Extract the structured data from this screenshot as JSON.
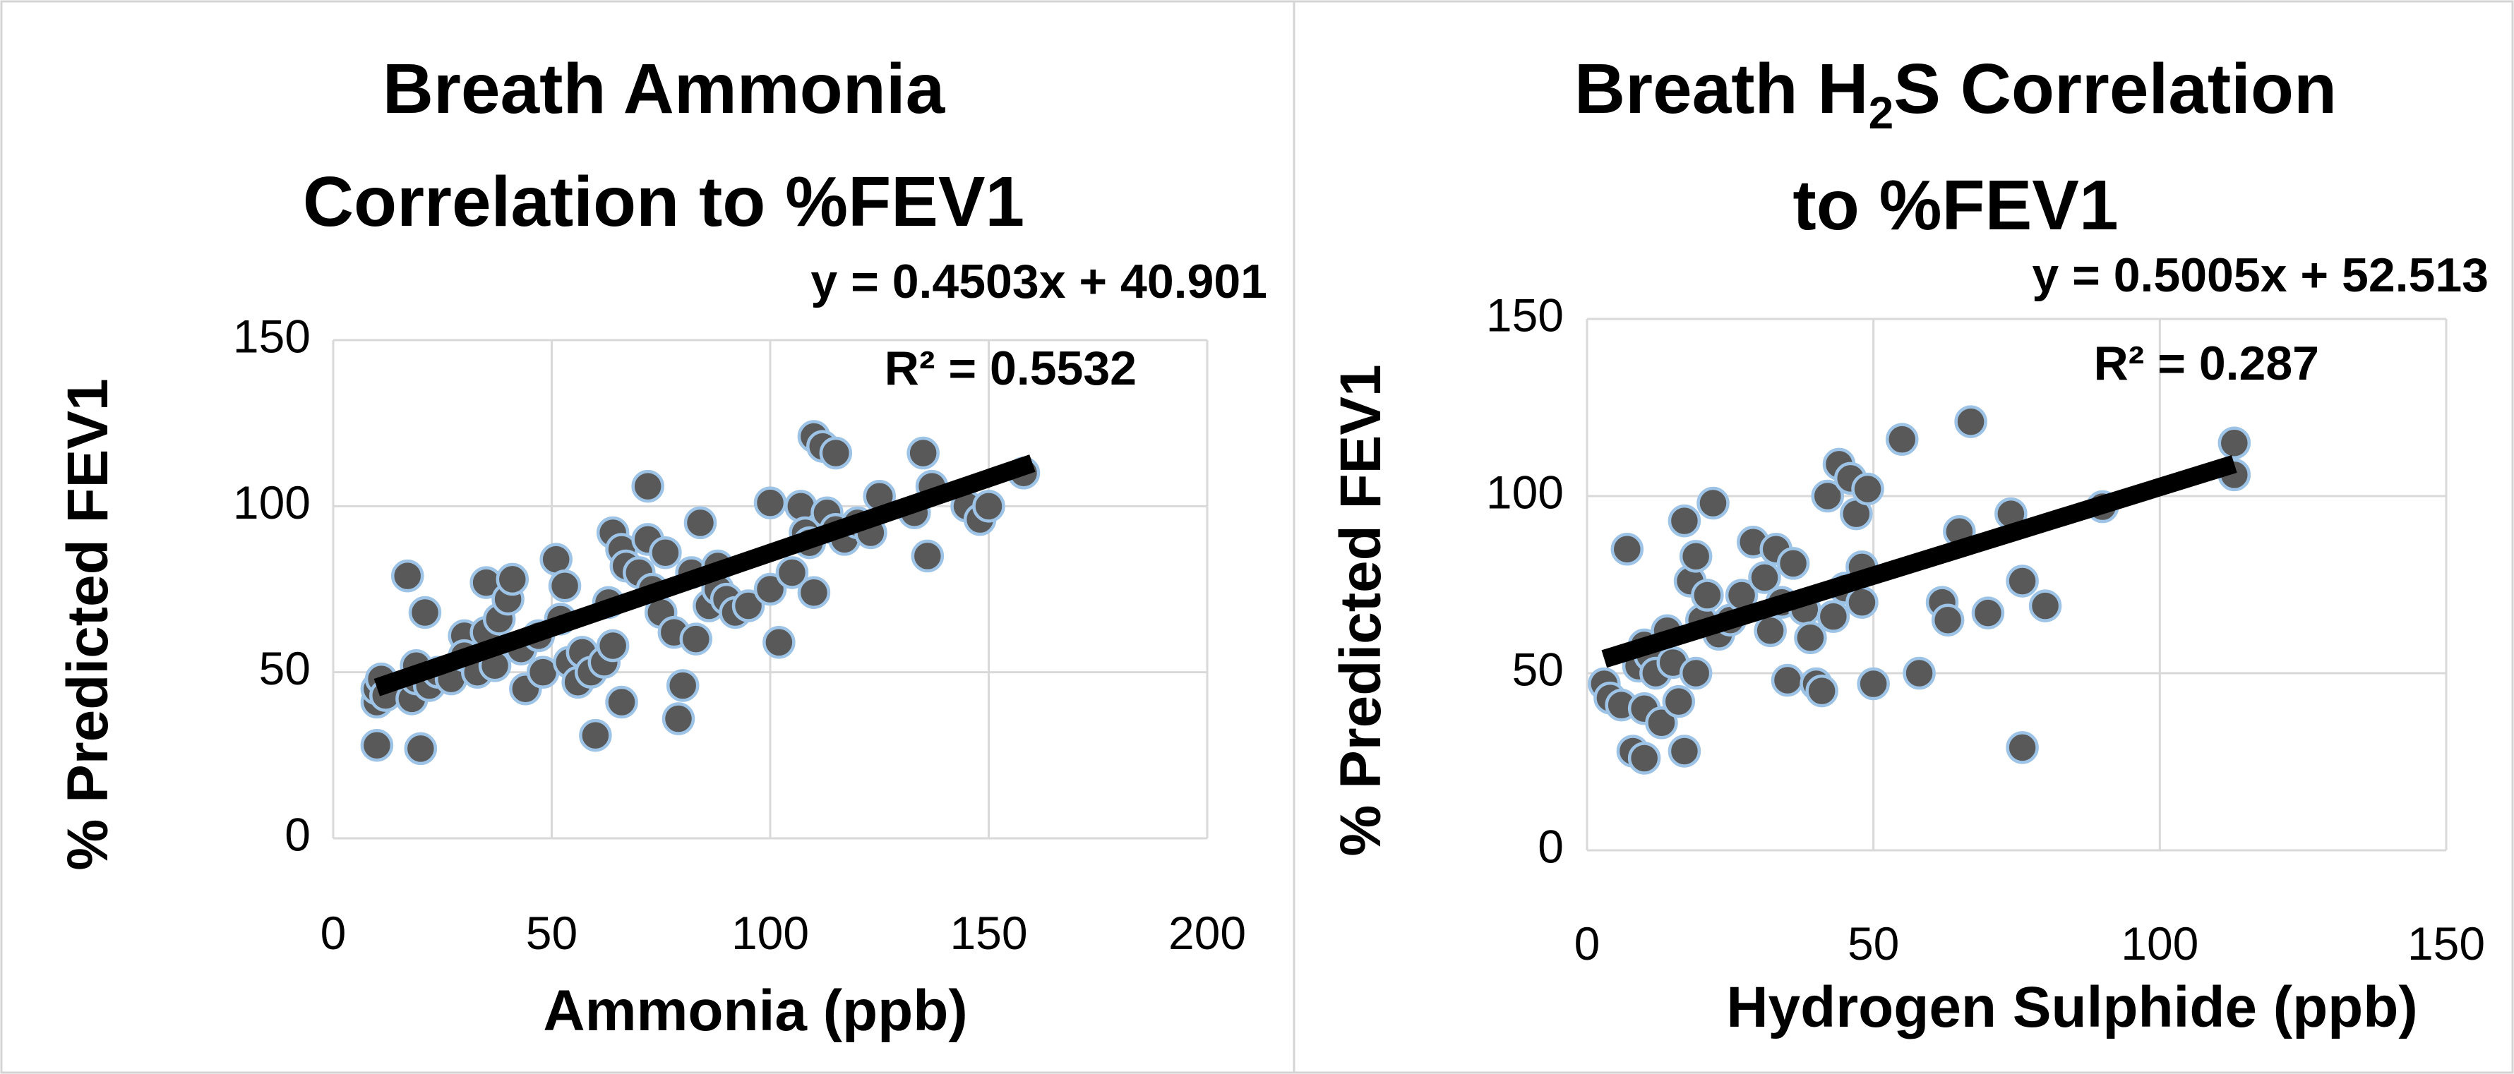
{
  "chart_data": [
    {
      "type": "scatter",
      "title_lines": [
        "Breath Ammonia",
        "Correlation to %FEV1"
      ],
      "xlabel": "Ammonia (ppb)",
      "ylabel": "% Predicted FEV1",
      "xlim": [
        0,
        200
      ],
      "ylim": [
        0,
        150
      ],
      "x_ticks": [
        "0",
        "50",
        "100",
        "150",
        "200"
      ],
      "y_ticks": [
        "0",
        "50",
        "100",
        "150"
      ],
      "grid": true,
      "trendline": {
        "equation": "y = 0.4503x + 40.901",
        "r2_text": "R² = 0.5532",
        "slope": 0.4503,
        "intercept": 40.901,
        "x_range": [
          10,
          160
        ]
      },
      "points": [
        [
          10,
          28
        ],
        [
          10,
          41
        ],
        [
          10,
          45
        ],
        [
          11,
          48
        ],
        [
          12,
          43
        ],
        [
          17,
          79
        ],
        [
          18,
          42
        ],
        [
          19,
          48
        ],
        [
          19,
          52
        ],
        [
          20,
          27
        ],
        [
          21,
          68
        ],
        [
          22,
          46
        ],
        [
          24,
          50
        ],
        [
          27,
          48
        ],
        [
          30,
          61
        ],
        [
          30,
          55
        ],
        [
          33,
          50
        ],
        [
          35,
          77
        ],
        [
          35,
          62
        ],
        [
          37,
          52
        ],
        [
          38,
          66
        ],
        [
          40,
          72
        ],
        [
          41,
          78
        ],
        [
          43,
          57
        ],
        [
          44,
          45
        ],
        [
          47,
          61
        ],
        [
          48,
          50
        ],
        [
          51,
          84
        ],
        [
          52,
          66
        ],
        [
          53,
          76
        ],
        [
          54,
          53
        ],
        [
          56,
          47
        ],
        [
          57,
          56
        ],
        [
          59,
          50
        ],
        [
          60,
          31
        ],
        [
          62,
          53
        ],
        [
          63,
          71
        ],
        [
          64,
          92
        ],
        [
          64,
          58
        ],
        [
          66,
          41
        ],
        [
          66,
          87
        ],
        [
          67,
          82
        ],
        [
          70,
          80
        ],
        [
          72,
          106
        ],
        [
          72,
          90
        ],
        [
          73,
          75
        ],
        [
          75,
          68
        ],
        [
          76,
          86
        ],
        [
          78,
          62
        ],
        [
          79,
          36
        ],
        [
          80,
          46
        ],
        [
          82,
          80
        ],
        [
          83,
          60
        ],
        [
          84,
          95
        ],
        [
          86,
          70
        ],
        [
          88,
          82
        ],
        [
          88,
          75
        ],
        [
          90,
          72
        ],
        [
          92,
          68
        ],
        [
          95,
          70
        ],
        [
          100,
          101
        ],
        [
          100,
          75
        ],
        [
          102,
          59
        ],
        [
          105,
          80
        ],
        [
          107,
          100
        ],
        [
          108,
          92
        ],
        [
          109,
          89
        ],
        [
          110,
          121
        ],
        [
          110,
          74
        ],
        [
          112,
          118
        ],
        [
          113,
          98
        ],
        [
          115,
          116
        ],
        [
          115,
          93
        ],
        [
          117,
          90
        ],
        [
          120,
          95
        ],
        [
          123,
          92
        ],
        [
          125,
          103
        ],
        [
          133,
          98
        ],
        [
          135,
          116
        ],
        [
          136,
          85
        ],
        [
          137,
          106
        ],
        [
          145,
          100
        ],
        [
          148,
          96
        ],
        [
          150,
          100
        ],
        [
          158,
          110
        ]
      ]
    },
    {
      "type": "scatter",
      "title_lines": [
        "Breath H",
        "2",
        "S Correlation",
        "to %FEV1"
      ],
      "xlabel": "Hydrogen Sulphide (ppb)",
      "ylabel": "% Predicted FEV1",
      "xlim": [
        0,
        150
      ],
      "ylim": [
        0,
        150
      ],
      "x_ticks": [
        "0",
        "50",
        "100",
        "150"
      ],
      "y_ticks": [
        "0",
        "50",
        "100",
        "150"
      ],
      "grid": true,
      "trendline": {
        "equation": "y = 0.5005x + 52.513",
        "r2_text": "R² = 0.287",
        "slope": 0.5005,
        "intercept": 52.513,
        "x_range": [
          3,
          113
        ]
      },
      "points": [
        [
          3,
          47
        ],
        [
          4,
          43
        ],
        [
          6,
          41
        ],
        [
          7,
          85
        ],
        [
          8,
          28
        ],
        [
          9,
          52
        ],
        [
          10,
          26
        ],
        [
          10,
          58
        ],
        [
          10,
          40
        ],
        [
          11,
          55
        ],
        [
          12,
          50
        ],
        [
          13,
          36
        ],
        [
          14,
          62
        ],
        [
          15,
          53
        ],
        [
          16,
          42
        ],
        [
          17,
          93
        ],
        [
          17,
          28
        ],
        [
          18,
          76
        ],
        [
          19,
          83
        ],
        [
          19,
          50
        ],
        [
          20,
          65
        ],
        [
          21,
          72
        ],
        [
          22,
          98
        ],
        [
          23,
          61
        ],
        [
          25,
          65
        ],
        [
          27,
          72
        ],
        [
          29,
          87
        ],
        [
          31,
          77
        ],
        [
          32,
          62
        ],
        [
          33,
          85
        ],
        [
          34,
          70
        ],
        [
          35,
          48
        ],
        [
          36,
          81
        ],
        [
          38,
          68
        ],
        [
          39,
          60
        ],
        [
          40,
          47
        ],
        [
          41,
          45
        ],
        [
          42,
          100
        ],
        [
          43,
          66
        ],
        [
          44,
          109
        ],
        [
          45,
          74
        ],
        [
          46,
          105
        ],
        [
          47,
          95
        ],
        [
          48,
          80
        ],
        [
          48,
          70
        ],
        [
          49,
          102
        ],
        [
          50,
          47
        ],
        [
          55,
          116
        ],
        [
          58,
          50
        ],
        [
          62,
          70
        ],
        [
          63,
          65
        ],
        [
          65,
          90
        ],
        [
          67,
          121
        ],
        [
          70,
          67
        ],
        [
          74,
          95
        ],
        [
          76,
          76
        ],
        [
          76,
          29
        ],
        [
          80,
          69
        ],
        [
          90,
          97
        ],
        [
          113,
          115
        ],
        [
          113,
          106
        ]
      ]
    }
  ]
}
